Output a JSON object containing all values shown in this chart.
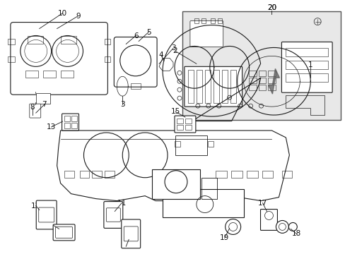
{
  "bg_color": "#ffffff",
  "line_color": "#1a1a1a",
  "label_color": "#111111",
  "box20_fill": "#e8e8e8",
  "fig_width": 4.89,
  "fig_height": 3.6,
  "dpi": 100,
  "fontsize_label": 7.5
}
